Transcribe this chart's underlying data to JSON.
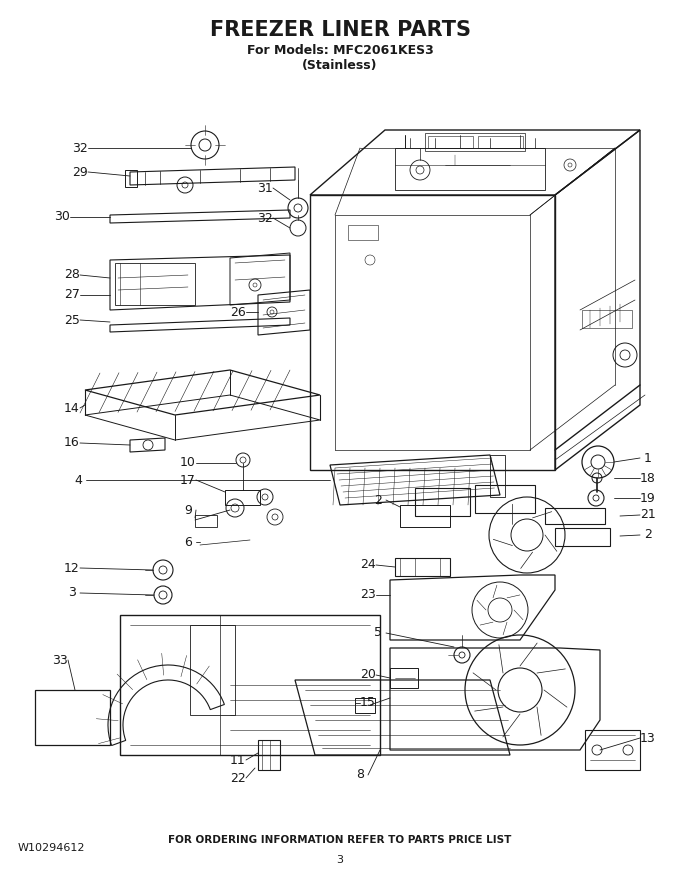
{
  "title_line1": "FREEZER LINER PARTS",
  "title_line2": "For Models: MFC2061KES3",
  "title_line3": "(Stainless)",
  "footer_left": "W10294612",
  "footer_center": "3",
  "footer_bottom": "FOR ORDERING INFORMATION REFER TO PARTS PRICE LIST",
  "bg_color": "#ffffff",
  "line_color": "#1a1a1a",
  "title_fontsize": 15,
  "subtitle_fontsize": 9,
  "label_fontsize": 9,
  "footer_fontsize": 8
}
